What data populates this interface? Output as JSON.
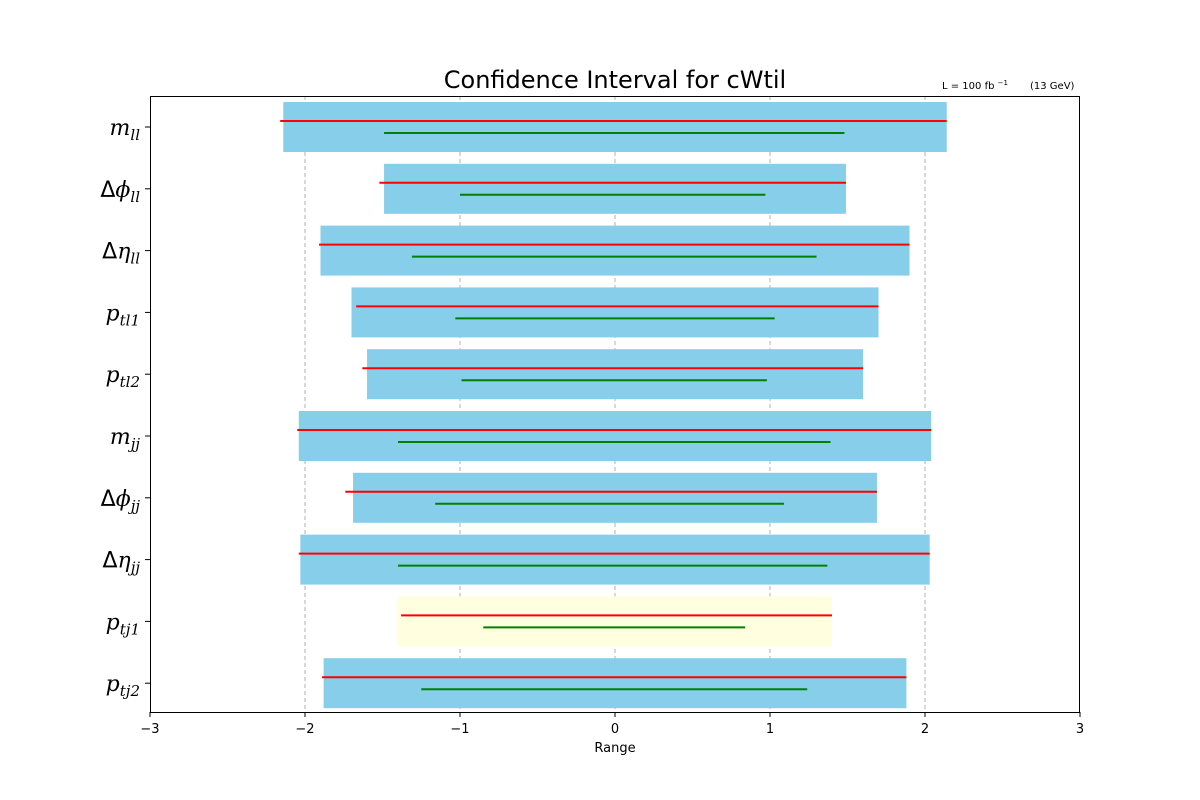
{
  "chart_data": {
    "type": "bar",
    "orientation": "horizontal",
    "title": "Confidence Interval for cWtil",
    "annotation": {
      "lumi": "L = 100 fb",
      "lumi_exp": "−1",
      "energy": "(13 GeV)"
    },
    "xlabel": "Range",
    "xlim": [
      -3,
      3
    ],
    "xticks": [
      -3,
      -2,
      -1,
      0,
      1,
      2,
      3
    ],
    "xtick_labels": [
      "−3",
      "−2",
      "−1",
      "0",
      "1",
      "2",
      "3"
    ],
    "grid": "x-dashed",
    "categories": [
      {
        "base": "m",
        "sub": "ll",
        "delta": ""
      },
      {
        "base": "ϕ",
        "sub": "ll",
        "delta": "Δ"
      },
      {
        "base": "η",
        "sub": "ll",
        "delta": "Δ"
      },
      {
        "base": "p",
        "sub": "tl1",
        "delta": ""
      },
      {
        "base": "p",
        "sub": "tl2",
        "delta": ""
      },
      {
        "base": "m",
        "sub": "jj",
        "delta": ""
      },
      {
        "base": "ϕ",
        "sub": "jj",
        "delta": "Δ"
      },
      {
        "base": "η",
        "sub": "jj",
        "delta": "Δ"
      },
      {
        "base": "p",
        "sub": "tj1",
        "delta": ""
      },
      {
        "base": "p",
        "sub": "tj2",
        "delta": ""
      }
    ],
    "bars": [
      {
        "low": -2.14,
        "high": 2.14,
        "color": "#87ceeb"
      },
      {
        "low": -1.49,
        "high": 1.49,
        "color": "#87ceeb"
      },
      {
        "low": -1.9,
        "high": 1.9,
        "color": "#87ceeb"
      },
      {
        "low": -1.7,
        "high": 1.7,
        "color": "#87ceeb"
      },
      {
        "low": -1.6,
        "high": 1.6,
        "color": "#87ceeb"
      },
      {
        "low": -2.04,
        "high": 2.04,
        "color": "#87ceeb"
      },
      {
        "low": -1.69,
        "high": 1.69,
        "color": "#87ceeb"
      },
      {
        "low": -2.03,
        "high": 2.03,
        "color": "#87ceeb"
      },
      {
        "low": -1.4,
        "high": 1.4,
        "color": "#ffffe0"
      },
      {
        "low": -1.88,
        "high": 1.88,
        "color": "#87ceeb"
      }
    ],
    "red_lines": [
      {
        "low": -2.16,
        "high": 2.14
      },
      {
        "low": -1.52,
        "high": 1.49
      },
      {
        "low": -1.91,
        "high": 1.9
      },
      {
        "low": -1.67,
        "high": 1.7
      },
      {
        "low": -1.63,
        "high": 1.6
      },
      {
        "low": -2.05,
        "high": 2.04
      },
      {
        "low": -1.74,
        "high": 1.69
      },
      {
        "low": -2.04,
        "high": 2.03
      },
      {
        "low": -1.38,
        "high": 1.4
      },
      {
        "low": -1.89,
        "high": 1.88
      }
    ],
    "green_lines": [
      {
        "low": -1.49,
        "high": 1.48
      },
      {
        "low": -1.0,
        "high": 0.97
      },
      {
        "low": -1.31,
        "high": 1.3
      },
      {
        "low": -1.03,
        "high": 1.03
      },
      {
        "low": -0.99,
        "high": 0.98
      },
      {
        "low": -1.4,
        "high": 1.39
      },
      {
        "low": -1.16,
        "high": 1.09
      },
      {
        "low": -1.4,
        "high": 1.37
      },
      {
        "low": -0.85,
        "high": 0.84
      },
      {
        "low": -1.25,
        "high": 1.24
      }
    ],
    "colors": {
      "red": "#ff0000",
      "green": "#008000",
      "grid": "#b0b0b0"
    }
  }
}
